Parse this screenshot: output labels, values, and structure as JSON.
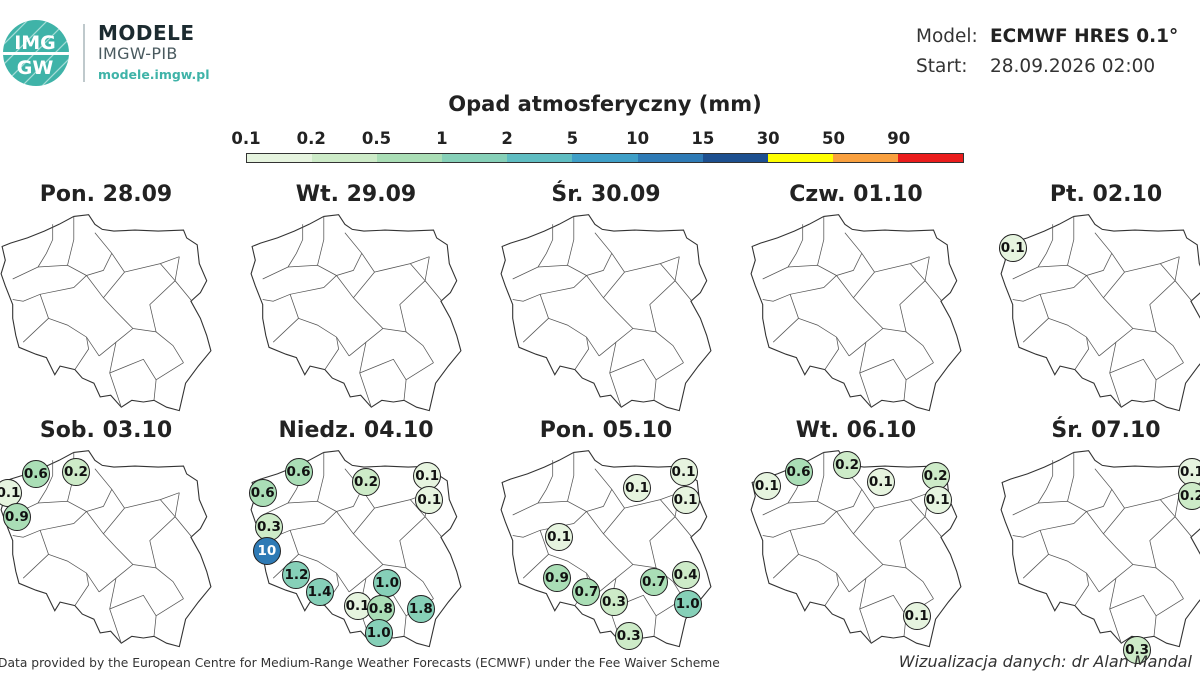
{
  "brand": {
    "logo_top": "IMG",
    "logo_bottom": "GW",
    "title": "MODELE",
    "subtitle": "IMGW-PIB",
    "url": "modele.imgw.pl"
  },
  "meta": {
    "model_label": "Model:",
    "model_value": "ECMWF HRES 0.1°",
    "start_label": "Start:",
    "start_value": "28.09.2026 02:00"
  },
  "scale": {
    "title": "Opad atmosferyczny (mm)",
    "ticks": [
      "0.1",
      "0.2",
      "0.5",
      "1",
      "2",
      "5",
      "10",
      "15",
      "30",
      "50",
      "90"
    ],
    "colors": [
      "#e6f4df",
      "#cdebc8",
      "#aadeb6",
      "#86d0b8",
      "#5fbdc2",
      "#3f9fc7",
      "#2e7ab5",
      "#1d4f8f",
      "#ffff00",
      "#f9a03f",
      "#ea1d1d"
    ]
  },
  "panels": [
    {
      "label": "Pon. 28.09",
      "values": []
    },
    {
      "label": "Wt. 29.09",
      "values": []
    },
    {
      "label": "Śr. 30.09",
      "values": []
    },
    {
      "label": "Czw. 01.10",
      "values": []
    },
    {
      "label": "Pt. 02.10",
      "values": [
        {
          "v": "0.1",
          "lon": 14.7,
          "lat": 53.85
        }
      ]
    },
    {
      "label": "Sob. 03.10",
      "values": [
        {
          "v": "0.6",
          "lon": 15.8,
          "lat": 54.15
        },
        {
          "v": "0.2",
          "lon": 17.7,
          "lat": 54.2
        },
        {
          "v": "0.1",
          "lon": 14.5,
          "lat": 53.6
        },
        {
          "v": "0.9",
          "lon": 14.9,
          "lat": 52.9
        }
      ]
    },
    {
      "label": "Niedz. 04.10",
      "values": [
        {
          "v": "0.6",
          "lon": 16.4,
          "lat": 54.2
        },
        {
          "v": "0.2",
          "lon": 19.6,
          "lat": 53.9
        },
        {
          "v": "0.1",
          "lon": 22.5,
          "lat": 54.1
        },
        {
          "v": "0.6",
          "lon": 14.7,
          "lat": 53.6
        },
        {
          "v": "0.1",
          "lon": 22.6,
          "lat": 53.4
        },
        {
          "v": "0.3",
          "lon": 15.0,
          "lat": 52.6
        },
        {
          "v": "10",
          "lon": 14.9,
          "lat": 51.9
        },
        {
          "v": "1.2",
          "lon": 16.3,
          "lat": 51.2
        },
        {
          "v": "1.4",
          "lon": 17.4,
          "lat": 50.7
        },
        {
          "v": "1.0",
          "lon": 20.6,
          "lat": 50.95
        },
        {
          "v": "0.1",
          "lon": 19.2,
          "lat": 50.3
        },
        {
          "v": "0.8",
          "lon": 20.3,
          "lat": 50.2
        },
        {
          "v": "1.8",
          "lon": 22.2,
          "lat": 50.2
        },
        {
          "v": "1.0",
          "lon": 20.2,
          "lat": 49.5
        }
      ]
    },
    {
      "label": "Pon. 05.10",
      "values": [
        {
          "v": "0.1",
          "lon": 22.8,
          "lat": 54.2
        },
        {
          "v": "0.1",
          "lon": 20.6,
          "lat": 53.75
        },
        {
          "v": "0.1",
          "lon": 22.9,
          "lat": 53.4
        },
        {
          "v": "0.1",
          "lon": 16.9,
          "lat": 52.3
        },
        {
          "v": "0.9",
          "lon": 16.8,
          "lat": 51.1
        },
        {
          "v": "0.7",
          "lon": 18.2,
          "lat": 50.7
        },
        {
          "v": "0.3",
          "lon": 19.5,
          "lat": 50.4
        },
        {
          "v": "0.7",
          "lon": 21.4,
          "lat": 51.0
        },
        {
          "v": "0.4",
          "lon": 22.9,
          "lat": 51.2
        },
        {
          "v": "1.0",
          "lon": 23.0,
          "lat": 50.35
        },
        {
          "v": "0.3",
          "lon": 20.2,
          "lat": 49.4
        }
      ]
    },
    {
      "label": "Wt. 06.10",
      "values": [
        {
          "v": "0.6",
          "lon": 16.4,
          "lat": 54.2
        },
        {
          "v": "0.2",
          "lon": 18.7,
          "lat": 54.4
        },
        {
          "v": "0.2",
          "lon": 22.9,
          "lat": 54.1
        },
        {
          "v": "0.1",
          "lon": 14.9,
          "lat": 53.8
        },
        {
          "v": "0.1",
          "lon": 20.3,
          "lat": 53.9
        },
        {
          "v": "0.1",
          "lon": 23.0,
          "lat": 53.4
        },
        {
          "v": "0.1",
          "lon": 22.0,
          "lat": 50.0
        }
      ]
    },
    {
      "label": "Śr. 07.10",
      "values": [
        {
          "v": "0.1",
          "lon": 23.2,
          "lat": 54.2
        },
        {
          "v": "0.2",
          "lon": 23.2,
          "lat": 53.5
        },
        {
          "v": "0.3",
          "lon": 20.6,
          "lat": 49.0
        }
      ]
    }
  ],
  "footer": {
    "left": "Data provided by the European Centre for Medium-Range Weather Forecasts (ECMWF) under the Fee Waiver Scheme",
    "right": "Wizualizacja danych: dr Alan Mandal"
  }
}
